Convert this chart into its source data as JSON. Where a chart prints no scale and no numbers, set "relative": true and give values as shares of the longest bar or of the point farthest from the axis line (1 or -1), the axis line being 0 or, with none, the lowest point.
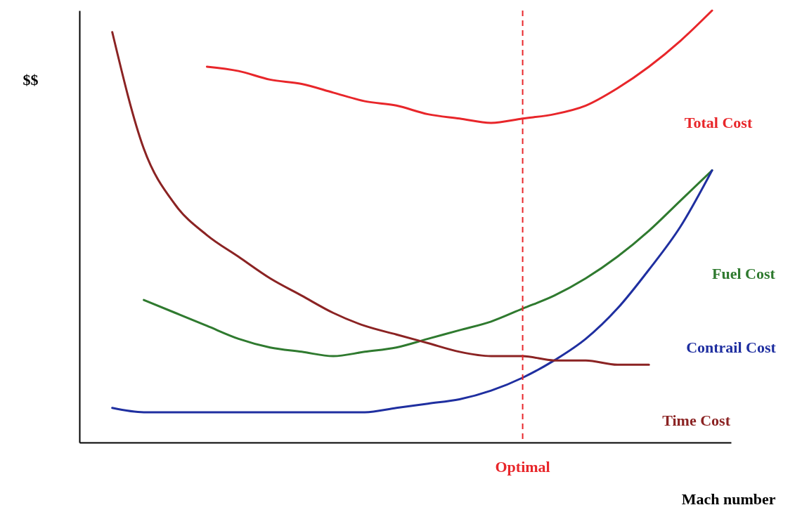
{
  "chart_data": {
    "type": "line",
    "relative": true,
    "xlabel": "Mach number",
    "ylabel": "$$",
    "legend": false,
    "marker": "none",
    "line_style": "solid",
    "categories": [
      null,
      null,
      null,
      null,
      null,
      null,
      null,
      null,
      null,
      null,
      null,
      null,
      null,
      null,
      null,
      null,
      null,
      null,
      null,
      null
    ],
    "series": [
      {
        "name": "Total Cost",
        "color": "#e8262a",
        "values": [
          null,
          null,
          null,
          0.87,
          0.86,
          0.84,
          0.83,
          0.81,
          0.79,
          0.78,
          0.76,
          0.75,
          0.74,
          0.75,
          0.76,
          0.78,
          0.82,
          0.87,
          0.93,
          1
        ]
      },
      {
        "name": "Fuel Cost",
        "color": "#2f7a2f",
        "values": [
          null,
          0.33,
          0.3,
          0.27,
          0.24,
          0.22,
          0.21,
          0.2,
          0.21,
          0.22,
          0.24,
          0.26,
          0.28,
          0.31,
          0.34,
          0.38,
          0.43,
          0.49,
          0.56,
          0.63
        ]
      },
      {
        "name": "Contrail Cost",
        "color": "#1f2fa0",
        "values": [
          0.08,
          0.07,
          0.07,
          0.07,
          0.07,
          0.07,
          0.07,
          0.07,
          0.07,
          0.08,
          0.09,
          0.1,
          0.12,
          0.15,
          0.19,
          0.24,
          0.31,
          0.4,
          0.5,
          0.63
        ]
      },
      {
        "name": "Time Cost",
        "color": "#8b2323",
        "values": [
          0.95,
          0.68,
          0.55,
          0.48,
          0.43,
          0.38,
          0.34,
          0.3,
          0.27,
          0.25,
          0.23,
          0.21,
          0.2,
          0.2,
          0.19,
          0.19,
          0.18,
          0.18,
          null,
          null
        ]
      }
    ],
    "annotations": [
      "Optimal"
    ]
  }
}
